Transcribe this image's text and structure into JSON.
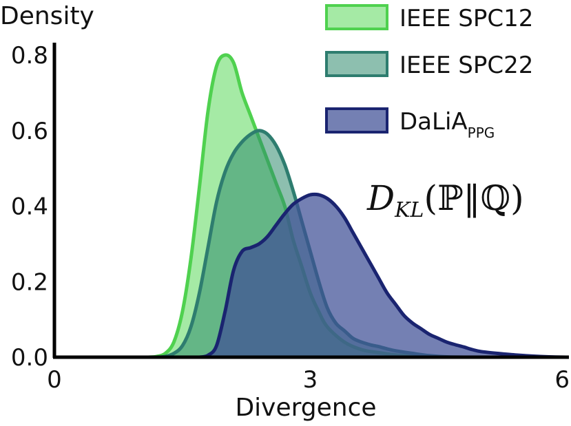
{
  "chart_data": {
    "type": "area",
    "ylabel": "Density",
    "xlabel": "Divergence",
    "xlim": [
      0,
      6
    ],
    "ylim": [
      0,
      0.8
    ],
    "x_ticks": [
      "0",
      "3",
      "6"
    ],
    "y_ticks": [
      "0.0",
      "0.2",
      "0.4",
      "0.6",
      "0.8"
    ],
    "grid": false,
    "legend_placement": "top-right",
    "annotation": {
      "text": "D_KL(ℙ‖ℚ)",
      "main": "D",
      "subscript": "KL",
      "args": "(ℙ‖ℚ)"
    },
    "series": [
      {
        "name": "IEEE SPC12",
        "legend_main": "IEEE SPC12",
        "legend_sub": "",
        "fill": "#9be89b",
        "fill_opacity": 0.9,
        "stroke": "#4fd14f",
        "x": [
          1.0,
          1.1,
          1.2,
          1.3,
          1.4,
          1.5,
          1.6,
          1.7,
          1.8,
          1.9,
          2.0,
          2.1,
          2.2,
          2.3,
          2.4,
          2.5,
          2.6,
          2.7,
          2.8,
          2.9,
          3.0,
          3.1,
          3.2,
          3.4,
          3.6,
          3.8,
          4.0,
          4.2,
          4.4,
          4.6
        ],
        "y": [
          0.0,
          0.0,
          0.002,
          0.01,
          0.04,
          0.12,
          0.26,
          0.45,
          0.65,
          0.77,
          0.8,
          0.78,
          0.7,
          0.64,
          0.58,
          0.52,
          0.46,
          0.4,
          0.31,
          0.24,
          0.17,
          0.12,
          0.08,
          0.04,
          0.02,
          0.012,
          0.006,
          0.003,
          0.001,
          0.0
        ]
      },
      {
        "name": "IEEE SPC22",
        "legend_main": "IEEE SPC22",
        "legend_sub": "",
        "fill": "#2f8a6e",
        "fill_opacity": 0.55,
        "stroke": "#2e7d6f",
        "x": [
          1.2,
          1.3,
          1.4,
          1.5,
          1.6,
          1.7,
          1.8,
          1.9,
          2.0,
          2.1,
          2.2,
          2.3,
          2.4,
          2.5,
          2.6,
          2.7,
          2.8,
          2.9,
          3.0,
          3.1,
          3.2,
          3.3,
          3.4,
          3.5,
          3.6,
          3.7,
          3.8,
          3.9,
          4.0,
          4.2,
          4.4,
          4.6,
          4.8
        ],
        "y": [
          0.0,
          0.002,
          0.01,
          0.03,
          0.08,
          0.17,
          0.29,
          0.41,
          0.49,
          0.54,
          0.57,
          0.59,
          0.6,
          0.59,
          0.56,
          0.51,
          0.44,
          0.36,
          0.28,
          0.2,
          0.13,
          0.09,
          0.07,
          0.05,
          0.04,
          0.033,
          0.028,
          0.022,
          0.017,
          0.01,
          0.004,
          0.001,
          0.0
        ]
      },
      {
        "name": "DaLiA PPG",
        "legend_main": "DaLiA",
        "legend_sub": "PPG",
        "fill": "#3f4f95",
        "fill_opacity": 0.72,
        "stroke": "#1a2470",
        "x": [
          1.7,
          1.8,
          1.9,
          2.0,
          2.1,
          2.2,
          2.3,
          2.4,
          2.5,
          2.6,
          2.7,
          2.8,
          2.9,
          3.0,
          3.1,
          3.2,
          3.3,
          3.4,
          3.5,
          3.6,
          3.7,
          3.8,
          3.9,
          4.0,
          4.1,
          4.2,
          4.3,
          4.4,
          4.5,
          4.6,
          4.7,
          4.8,
          4.9,
          5.0,
          5.2,
          5.4,
          5.6,
          5.8,
          6.0
        ],
        "y": [
          0.0,
          0.005,
          0.03,
          0.12,
          0.23,
          0.28,
          0.29,
          0.3,
          0.32,
          0.35,
          0.38,
          0.405,
          0.42,
          0.43,
          0.43,
          0.42,
          0.4,
          0.37,
          0.33,
          0.29,
          0.25,
          0.21,
          0.17,
          0.14,
          0.11,
          0.09,
          0.075,
          0.06,
          0.05,
          0.04,
          0.033,
          0.027,
          0.02,
          0.015,
          0.01,
          0.006,
          0.003,
          0.001,
          0.0
        ]
      }
    ]
  }
}
